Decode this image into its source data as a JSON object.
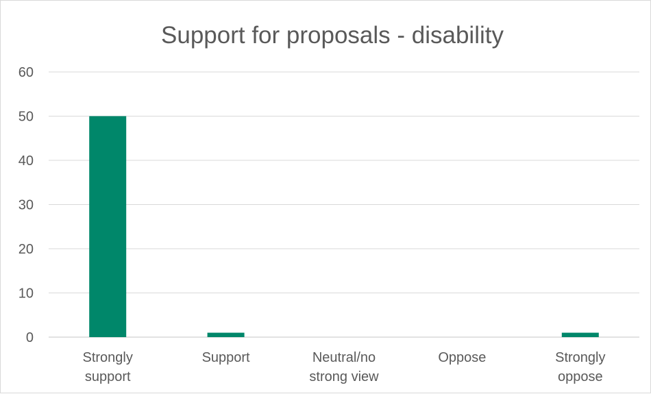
{
  "chart_data": {
    "type": "bar",
    "title": "Support for proposals - disability",
    "categories": [
      [
        "Strongly",
        "support"
      ],
      [
        "Support"
      ],
      [
        "Neutral/no",
        "strong view"
      ],
      [
        "Oppose"
      ],
      [
        "Strongly",
        "oppose"
      ]
    ],
    "values": [
      50,
      1,
      0,
      0,
      1
    ],
    "yticks": [
      "0",
      "10",
      "20",
      "30",
      "40",
      "50",
      "60"
    ],
    "ylim": [
      0,
      60
    ],
    "grid": true,
    "legend": "none",
    "colors": {
      "bar": "#00876a"
    }
  }
}
